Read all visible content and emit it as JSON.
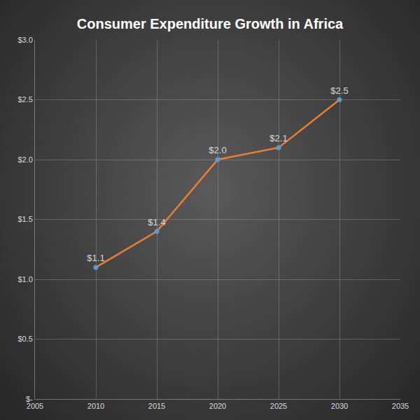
{
  "chart_data": {
    "type": "line",
    "title": "Consumer Expenditure Growth in Africa",
    "x": [
      2010,
      2015,
      2020,
      2025,
      2030
    ],
    "series": [
      {
        "color": "#ed7d31",
        "marker": "circle",
        "values": [
          1.1,
          1.4,
          2.0,
          2.1,
          2.5
        ],
        "value_labels": [
          "$1.1",
          "$1.4",
          "$2.0",
          "$2.1",
          "$2.5"
        ]
      }
    ],
    "xlim": [
      2005,
      2035
    ],
    "xticks": [
      2005,
      2010,
      2015,
      2020,
      2025,
      2030,
      2035
    ],
    "ylim": [
      0,
      3
    ],
    "yticks": [
      {
        "value": 0,
        "label": "$-"
      },
      {
        "value": 0.5,
        "label": "$0.5"
      },
      {
        "value": 1,
        "label": "$1.0"
      },
      {
        "value": 1.5,
        "label": "$1.5"
      },
      {
        "value": 2,
        "label": "$2.0"
      },
      {
        "value": 2.5,
        "label": "$2.5"
      },
      {
        "value": 3,
        "label": "$3.0"
      }
    ],
    "grid": true,
    "data_labels": true
  }
}
